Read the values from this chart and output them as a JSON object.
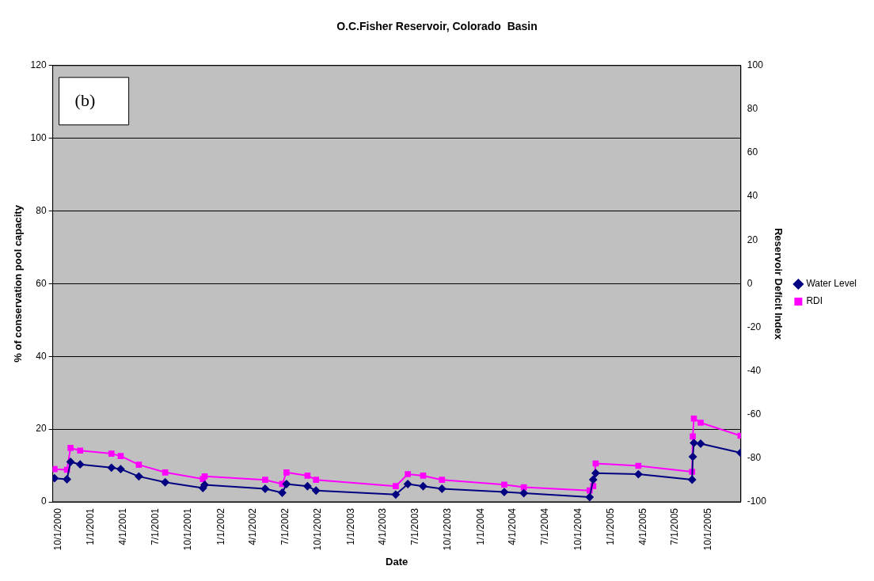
{
  "chart_data": {
    "type": "line",
    "title": "O.C.Fisher Reservoir, Colorado  Basin",
    "xlabel": "Date",
    "ylabel": "% of conservation pool capacity",
    "y2label": "Reservoir Deficit Index",
    "annotations": [
      "(b)"
    ],
    "x": [
      "2000-09-20",
      "2000-10-25",
      "2000-11-04",
      "2000-12-01",
      "2001-02-27",
      "2001-03-25",
      "2001-05-15",
      "2001-07-28",
      "2001-11-11",
      "2001-11-16",
      "2002-05-05",
      "2002-06-22",
      "2002-07-04",
      "2002-09-01",
      "2002-09-25",
      "2003-05-07",
      "2003-06-10",
      "2003-07-23",
      "2003-09-14",
      "2004-03-07",
      "2004-05-01",
      "2004-11-02",
      "2004-11-12",
      "2004-11-19",
      "2005-03-19",
      "2005-08-17",
      "2005-08-19",
      "2005-08-22",
      "2005-09-10",
      "2005-12-31"
    ],
    "series": [
      {
        "name": "Water Level",
        "color": "#000080",
        "marker": "diamond",
        "values": [
          6.5,
          6.2,
          11.0,
          10.3,
          9.4,
          9.0,
          7.0,
          5.4,
          3.8,
          4.7,
          3.6,
          2.5,
          4.9,
          4.3,
          3.1,
          2.0,
          4.9,
          4.3,
          3.6,
          2.7,
          2.4,
          1.3,
          6.1,
          7.9,
          7.6,
          6.1,
          12.4,
          16.2,
          16.0,
          13.5
        ]
      },
      {
        "name": "RDI",
        "color": "#ff00ff",
        "marker": "square",
        "axis": "y2",
        "values": [
          -85,
          -85.3,
          -75.3,
          -76.5,
          -77.9,
          -79,
          -83,
          -86.5,
          -89.5,
          -88.3,
          -89.9,
          -91.8,
          -86.5,
          -88,
          -89.9,
          -92.8,
          -87.3,
          -88,
          -89.9,
          -92.1,
          -93.3,
          -94.8,
          -92.8,
          -82.4,
          -83.5,
          -86.2,
          -70,
          -61.8,
          -63.7,
          -69.7
        ]
      }
    ],
    "xlim": [
      "2000-09-15",
      "2006-01-01"
    ],
    "xticks": [
      {
        "value": "2000-10-01",
        "label": "10/1/2000"
      },
      {
        "value": "2001-01-01",
        "label": "1/1/2001"
      },
      {
        "value": "2001-04-01",
        "label": "4/1/2001"
      },
      {
        "value": "2001-07-01",
        "label": "7/1/2001"
      },
      {
        "value": "2001-10-01",
        "label": "10/1/2001"
      },
      {
        "value": "2002-01-01",
        "label": "1/1/2002"
      },
      {
        "value": "2002-04-01",
        "label": "4/1/2002"
      },
      {
        "value": "2002-07-01",
        "label": "7/1/2002"
      },
      {
        "value": "2002-10-01",
        "label": "10/1/2002"
      },
      {
        "value": "2003-01-01",
        "label": "1/1/2003"
      },
      {
        "value": "2003-04-01",
        "label": "4/1/2003"
      },
      {
        "value": "2003-07-01",
        "label": "7/1/2003"
      },
      {
        "value": "2003-10-01",
        "label": "10/1/2003"
      },
      {
        "value": "2004-01-01",
        "label": "1/1/2004"
      },
      {
        "value": "2004-04-01",
        "label": "4/1/2004"
      },
      {
        "value": "2004-07-01",
        "label": "7/1/2004"
      },
      {
        "value": "2004-10-01",
        "label": "10/1/2004"
      },
      {
        "value": "2005-01-01",
        "label": "1/1/2005"
      },
      {
        "value": "2005-04-01",
        "label": "4/1/2005"
      },
      {
        "value": "2005-07-01",
        "label": "7/1/2005"
      },
      {
        "value": "2005-10-01",
        "label": "10/1/2005"
      },
      {
        "value": "2006-01-01",
        "label": null
      }
    ],
    "ylim": [
      0,
      120
    ],
    "yticks": [
      0,
      20,
      40,
      60,
      80,
      100,
      120
    ],
    "y2lim": [
      -100,
      100
    ],
    "y2ticks": [
      -100,
      -80,
      -60,
      -40,
      -20,
      0,
      20,
      40,
      60,
      80,
      100
    ],
    "grid": "y",
    "legend": "right",
    "line_style": "solid"
  }
}
